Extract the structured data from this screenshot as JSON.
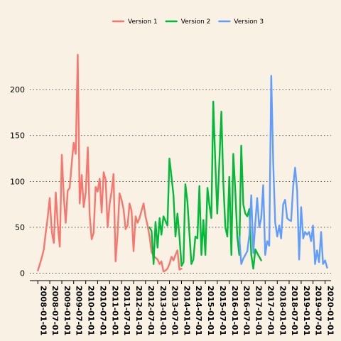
{
  "chart_data": {
    "type": "line",
    "title": "",
    "xlabel": "",
    "ylabel": "",
    "x_axis": {
      "type": "date",
      "range": [
        "2007-09-01",
        "2020-04-01"
      ],
      "ticks": [
        "2008-01-01",
        "2008-07-01",
        "2009-01-01",
        "2009-07-01",
        "2010-01-01",
        "2010-07-01",
        "2011-01-01",
        "2011-07-01",
        "2012-01-01",
        "2012-07-01",
        "2013-01-01",
        "2013-07-01",
        "2014-01-01",
        "2014-07-01",
        "2015-01-01",
        "2015-07-01",
        "2016-01-01",
        "2016-07-01",
        "2017-01-01",
        "2017-07-01",
        "2018-01-01",
        "2018-07-01",
        "2019-01-01",
        "2019-07-01",
        "2020-01-01"
      ]
    },
    "y_axis": {
      "range": [
        -8,
        255
      ],
      "ticks": [
        0,
        50,
        100,
        150,
        200
      ]
    },
    "grid": "horizontal dotted",
    "legend": "top-center",
    "series": [
      {
        "name": "Version 1",
        "color": "#f8766d",
        "points": [
          [
            "2008-01-01",
            3
          ],
          [
            "2008-02-01",
            10
          ],
          [
            "2008-03-01",
            17
          ],
          [
            "2008-04-01",
            26
          ],
          [
            "2008-05-01",
            44
          ],
          [
            "2008-06-01",
            62
          ],
          [
            "2008-07-01",
            82
          ],
          [
            "2008-08-01",
            45
          ],
          [
            "2008-09-01",
            33
          ],
          [
            "2008-10-01",
            88
          ],
          [
            "2008-11-01",
            52
          ],
          [
            "2008-12-01",
            29
          ],
          [
            "2009-01-01",
            129
          ],
          [
            "2009-02-01",
            82
          ],
          [
            "2009-03-01",
            55
          ],
          [
            "2009-04-01",
            90
          ],
          [
            "2009-05-01",
            93
          ],
          [
            "2009-06-01",
            120
          ],
          [
            "2009-07-01",
            142
          ],
          [
            "2009-08-01",
            130
          ],
          [
            "2009-09-01",
            238
          ],
          [
            "2009-10-01",
            76
          ],
          [
            "2009-11-01",
            107
          ],
          [
            "2009-12-01",
            72
          ],
          [
            "2010-01-01",
            88
          ],
          [
            "2010-02-01",
            137
          ],
          [
            "2010-03-01",
            65
          ],
          [
            "2010-04-01",
            37
          ],
          [
            "2010-05-01",
            44
          ],
          [
            "2010-06-01",
            94
          ],
          [
            "2010-07-01",
            89
          ],
          [
            "2010-08-01",
            103
          ],
          [
            "2010-09-01",
            66
          ],
          [
            "2010-10-01",
            110
          ],
          [
            "2010-11-01",
            102
          ],
          [
            "2010-12-01",
            50
          ],
          [
            "2011-01-01",
            76
          ],
          [
            "2011-02-01",
            90
          ],
          [
            "2011-03-01",
            108
          ],
          [
            "2011-04-01",
            13
          ],
          [
            "2011-05-01",
            42
          ],
          [
            "2011-06-01",
            87
          ],
          [
            "2011-07-01",
            80
          ],
          [
            "2011-08-01",
            70
          ],
          [
            "2011-09-01",
            48
          ],
          [
            "2011-10-01",
            52
          ],
          [
            "2011-11-01",
            76
          ],
          [
            "2011-12-01",
            68
          ],
          [
            "2012-01-01",
            24
          ],
          [
            "2012-02-01",
            62
          ],
          [
            "2012-03-01",
            55
          ],
          [
            "2012-04-01",
            60
          ],
          [
            "2012-05-01",
            68
          ],
          [
            "2012-06-01",
            76
          ],
          [
            "2012-07-01",
            62
          ],
          [
            "2012-08-01",
            52
          ],
          [
            "2012-09-01",
            40
          ],
          [
            "2012-10-01",
            23
          ],
          [
            "2012-11-01",
            19
          ],
          [
            "2012-12-01",
            17
          ],
          [
            "2013-01-01",
            15
          ],
          [
            "2013-02-01",
            10
          ],
          [
            "2013-03-01",
            13
          ],
          [
            "2013-04-01",
            2
          ],
          [
            "2013-05-01",
            3
          ],
          [
            "2013-06-01",
            5
          ],
          [
            "2013-07-01",
            10
          ],
          [
            "2013-08-01",
            18
          ],
          [
            "2013-09-01",
            14
          ],
          [
            "2013-10-01",
            20
          ],
          [
            "2013-11-01",
            25
          ],
          [
            "2013-12-01",
            4
          ],
          [
            "2014-01-01",
            5
          ]
        ]
      },
      {
        "name": "Version 2",
        "color": "#00ba38",
        "points": [
          [
            "2012-09-01",
            50
          ],
          [
            "2012-10-01",
            46
          ],
          [
            "2012-11-01",
            10
          ],
          [
            "2012-12-01",
            56
          ],
          [
            "2013-01-01",
            28
          ],
          [
            "2013-02-01",
            60
          ],
          [
            "2013-03-01",
            42
          ],
          [
            "2013-04-01",
            62
          ],
          [
            "2013-05-01",
            57
          ],
          [
            "2013-06-01",
            52
          ],
          [
            "2013-07-01",
            125
          ],
          [
            "2013-08-01",
            105
          ],
          [
            "2013-09-01",
            85
          ],
          [
            "2013-10-01",
            40
          ],
          [
            "2013-11-01",
            65
          ],
          [
            "2013-12-01",
            40
          ],
          [
            "2014-01-01",
            8
          ],
          [
            "2014-02-01",
            12
          ],
          [
            "2014-03-01",
            97
          ],
          [
            "2014-04-01",
            78
          ],
          [
            "2014-05-01",
            45
          ],
          [
            "2014-06-01",
            10
          ],
          [
            "2014-07-01",
            15
          ],
          [
            "2014-08-01",
            40
          ],
          [
            "2014-09-01",
            38
          ],
          [
            "2014-10-01",
            95
          ],
          [
            "2014-11-01",
            20
          ],
          [
            "2014-12-01",
            58
          ],
          [
            "2015-01-01",
            20
          ],
          [
            "2015-02-01",
            93
          ],
          [
            "2015-03-01",
            75
          ],
          [
            "2015-04-01",
            60
          ],
          [
            "2015-05-01",
            187
          ],
          [
            "2015-06-01",
            120
          ],
          [
            "2015-07-01",
            65
          ],
          [
            "2015-08-01",
            120
          ],
          [
            "2015-09-01",
            176
          ],
          [
            "2015-10-01",
            100
          ],
          [
            "2015-11-01",
            50
          ],
          [
            "2015-12-01",
            40
          ],
          [
            "2016-01-01",
            105
          ],
          [
            "2016-02-01",
            20
          ],
          [
            "2016-03-01",
            130
          ],
          [
            "2016-04-01",
            90
          ],
          [
            "2016-05-01",
            40
          ],
          [
            "2016-06-01",
            20
          ],
          [
            "2016-07-01",
            139
          ],
          [
            "2016-08-01",
            75
          ],
          [
            "2016-09-01",
            65
          ],
          [
            "2016-10-01",
            62
          ],
          [
            "2016-11-01",
            70
          ],
          [
            "2016-12-01",
            20
          ],
          [
            "2017-01-01",
            5
          ],
          [
            "2017-02-01",
            26
          ],
          [
            "2017-03-01",
            22
          ],
          [
            "2017-04-01",
            18
          ],
          [
            "2017-05-01",
            14
          ]
        ]
      },
      {
        "name": "Version 3",
        "color": "#619cff",
        "points": [
          [
            "2016-06-01",
            40
          ],
          [
            "2016-07-01",
            10
          ],
          [
            "2016-08-01",
            16
          ],
          [
            "2016-09-01",
            20
          ],
          [
            "2016-10-01",
            24
          ],
          [
            "2016-11-01",
            42
          ],
          [
            "2016-12-01",
            85
          ],
          [
            "2017-01-01",
            22
          ],
          [
            "2017-02-01",
            55
          ],
          [
            "2017-03-01",
            82
          ],
          [
            "2017-04-01",
            50
          ],
          [
            "2017-05-01",
            60
          ],
          [
            "2017-06-01",
            96
          ],
          [
            "2017-07-01",
            20
          ],
          [
            "2017-08-01",
            35
          ],
          [
            "2017-09-01",
            30
          ],
          [
            "2017-10-01",
            215
          ],
          [
            "2017-11-01",
            120
          ],
          [
            "2017-12-01",
            55
          ],
          [
            "2018-01-01",
            40
          ],
          [
            "2018-02-01",
            52
          ],
          [
            "2018-03-01",
            38
          ],
          [
            "2018-04-01",
            75
          ],
          [
            "2018-05-01",
            80
          ],
          [
            "2018-06-01",
            60
          ],
          [
            "2018-07-01",
            58
          ],
          [
            "2018-08-01",
            57
          ],
          [
            "2018-09-01",
            95
          ],
          [
            "2018-10-01",
            115
          ],
          [
            "2018-11-01",
            90
          ],
          [
            "2018-12-01",
            15
          ],
          [
            "2019-01-01",
            72
          ],
          [
            "2019-02-01",
            38
          ],
          [
            "2019-03-01",
            45
          ],
          [
            "2019-04-01",
            42
          ],
          [
            "2019-05-01",
            45
          ],
          [
            "2019-06-01",
            35
          ],
          [
            "2019-07-01",
            52
          ],
          [
            "2019-08-01",
            10
          ],
          [
            "2019-09-01",
            25
          ],
          [
            "2019-10-01",
            12
          ],
          [
            "2019-11-01",
            45
          ],
          [
            "2019-12-01",
            10
          ],
          [
            "2020-01-01",
            14
          ],
          [
            "2020-02-01",
            6
          ]
        ]
      }
    ]
  }
}
